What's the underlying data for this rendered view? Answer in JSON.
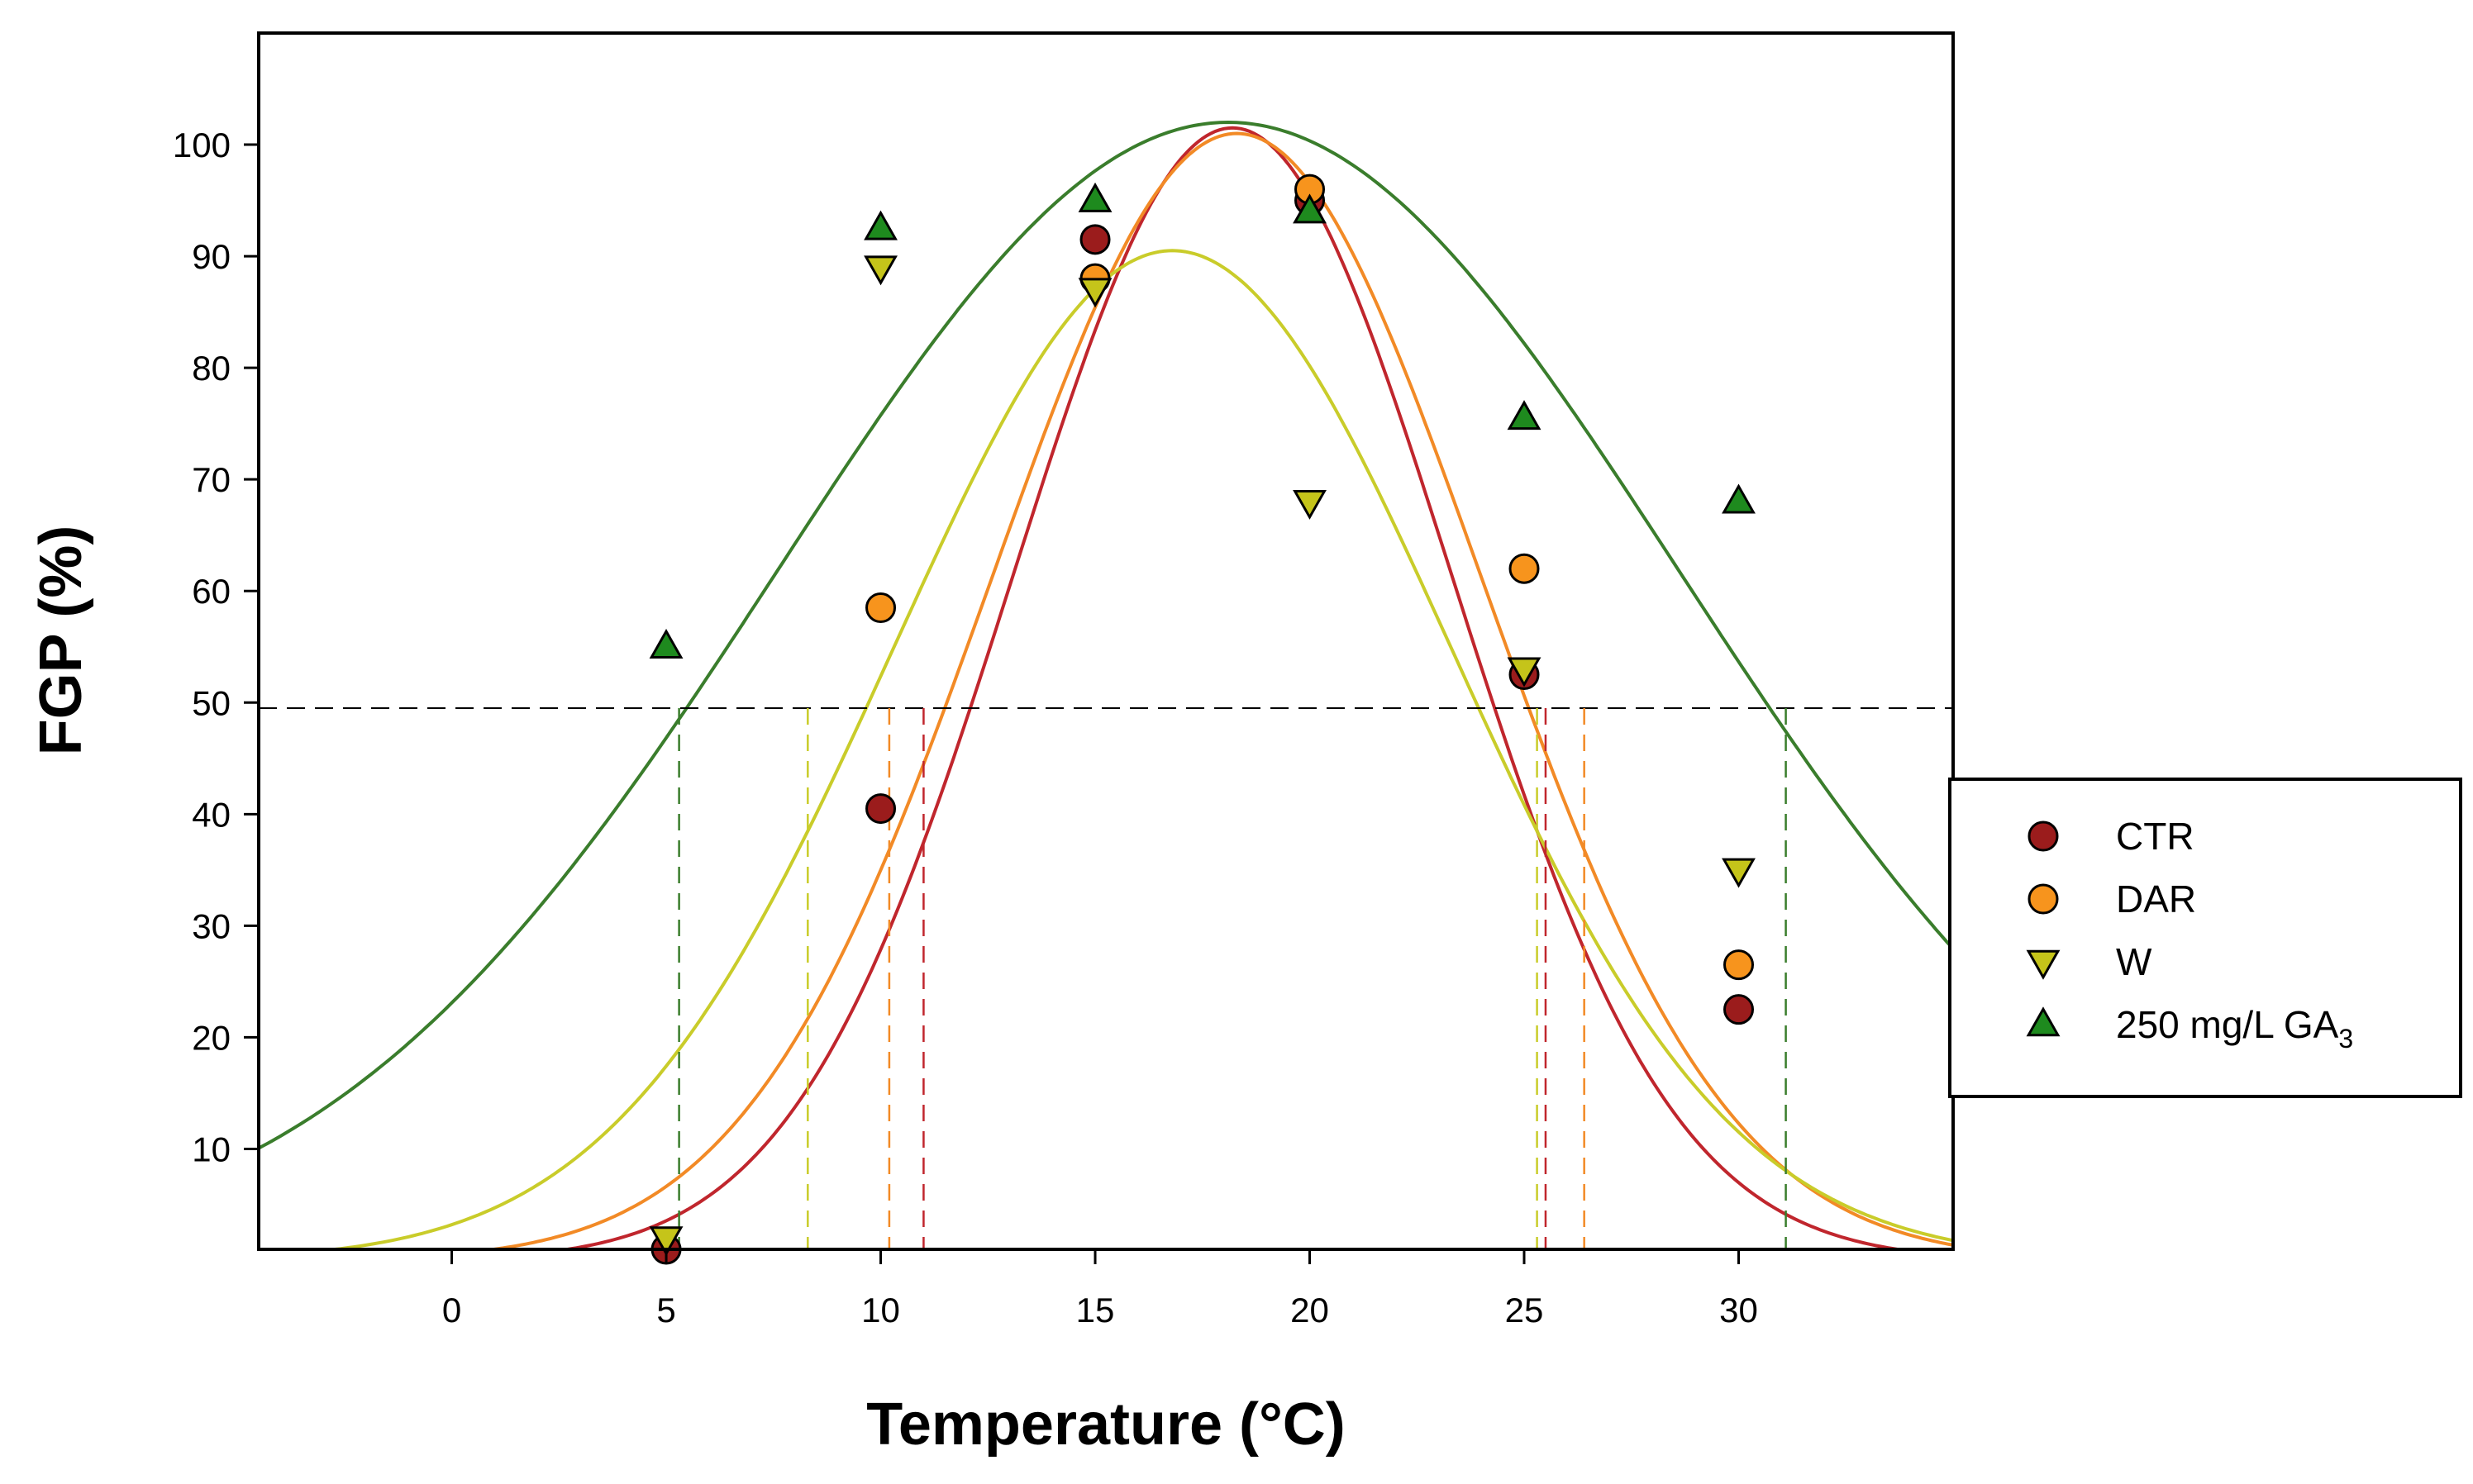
{
  "chart_data": {
    "type": "scatter",
    "xlabel": "Temperature (°C)",
    "ylabel": "FGP (%)",
    "xlim": [
      -4.5,
      35
    ],
    "ylim": [
      1,
      110
    ],
    "xticks": [
      0,
      5,
      10,
      15,
      20,
      25,
      30
    ],
    "yticks": [
      10,
      20,
      30,
      40,
      50,
      60,
      70,
      80,
      90,
      100
    ],
    "threshold": 49.5,
    "legend_position": "right",
    "series": [
      {
        "name": "CTR",
        "marker": "circle",
        "color": "#9b1c1c",
        "x": [
          5,
          10,
          15,
          20,
          25,
          30
        ],
        "y": [
          1,
          40.5,
          91.5,
          95,
          52.5,
          22.5
        ],
        "fit": {
          "peak": 101.5,
          "opt": 18.2,
          "sigma": 5.1,
          "color": "#c0262d"
        },
        "crossings": [
          11.0,
          25.5
        ]
      },
      {
        "name": "DAR",
        "marker": "circle",
        "color": "#f7941d",
        "x": [
          10,
          15,
          20,
          25,
          30
        ],
        "y": [
          58.5,
          88,
          96,
          62,
          26.5
        ],
        "fit": {
          "peak": 101,
          "opt": 18.3,
          "sigma": 5.7,
          "color": "#f28a26"
        },
        "crossings": [
          10.2,
          26.4
        ]
      },
      {
        "name": "W",
        "marker": "triangle-down",
        "color": "#c5c41a",
        "x": [
          5,
          10,
          15,
          20,
          25,
          30
        ],
        "y": [
          2,
          89,
          87,
          68,
          53,
          35
        ],
        "fit": {
          "peak": 90.5,
          "opt": 16.8,
          "sigma": 6.5,
          "color": "#c9cc2a"
        },
        "crossings": [
          8.3,
          25.3
        ]
      },
      {
        "name": "250 mg/L GA",
        "subscript": "3",
        "marker": "triangle-up",
        "color": "#1e8a1e",
        "x": [
          5,
          10,
          15,
          20,
          25,
          30
        ],
        "y": [
          55,
          92.5,
          95,
          94,
          75.5,
          68
        ],
        "fit": {
          "peak": 102,
          "opt": 18.1,
          "sigma": 10.5,
          "color": "#3a7d2c"
        },
        "crossings": [
          5.3,
          31.1
        ]
      }
    ]
  }
}
